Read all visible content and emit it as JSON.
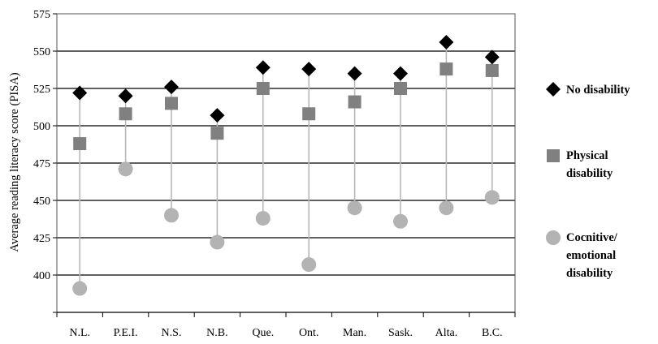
{
  "chart_data": {
    "type": "scatter",
    "title": "",
    "xlabel": "",
    "ylabel": "Average reading literacy score (PISA)",
    "categories": [
      "N.L.",
      "P.E.I.",
      "N.S.",
      "N.B.",
      "Que.",
      "Ont.",
      "Man.",
      "Sask.",
      "Alta.",
      "B.C."
    ],
    "ylim": [
      375,
      575
    ],
    "yticks": [
      400,
      425,
      450,
      475,
      500,
      525,
      550,
      575
    ],
    "grid": "horizontal",
    "legend_position": "right",
    "series": [
      {
        "key": "none",
        "name": "No disability",
        "marker": "diamond",
        "color": "#000000",
        "values": [
          522,
          520,
          526,
          507,
          539,
          538,
          535,
          535,
          556,
          546
        ]
      },
      {
        "key": "physical",
        "name": "Physical disability",
        "legend_lines": [
          "Physical",
          "disability"
        ],
        "marker": "square",
        "color": "#808080",
        "values": [
          488,
          508,
          515,
          495,
          525,
          508,
          516,
          525,
          538,
          537
        ]
      },
      {
        "key": "cognitive",
        "name": "Cocnitive/ emotional disability",
        "legend_lines": [
          "Cocnitive/",
          "emotional",
          "disability"
        ],
        "marker": "circle",
        "color": "#b3b3b3",
        "values": [
          391,
          471,
          440,
          422,
          438,
          407,
          445,
          436,
          445,
          452
        ]
      }
    ]
  }
}
